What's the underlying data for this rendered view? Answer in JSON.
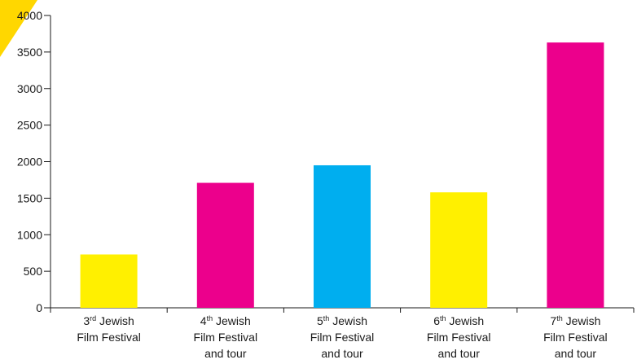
{
  "chart_data": {
    "type": "bar",
    "categories": [
      {
        "ordinal": "3",
        "suffix": "rd",
        "line1_rest": " Jewish",
        "line2": "Film Festival",
        "line3": ""
      },
      {
        "ordinal": "4",
        "suffix": "th",
        "line1_rest": " Jewish",
        "line2": "Film Festival",
        "line3": "and tour"
      },
      {
        "ordinal": "5",
        "suffix": "th",
        "line1_rest": " Jewish",
        "line2": "Film Festival",
        "line3": "and tour"
      },
      {
        "ordinal": "6",
        "suffix": "th",
        "line1_rest": " Jewish",
        "line2": "Film Festival",
        "line3": "and tour"
      },
      {
        "ordinal": "7",
        "suffix": "th",
        "line1_rest": " Jewish",
        "line2": "Film Festival",
        "line3": "and tour"
      }
    ],
    "values": [
      730,
      1710,
      1950,
      1580,
      3630
    ],
    "bar_colors": [
      "#FFF000",
      "#EC008C",
      "#00AEEF",
      "#FFF000",
      "#EC008C"
    ],
    "ylim": [
      0,
      4000
    ],
    "yticks": [
      0,
      500,
      1000,
      1500,
      2000,
      2500,
      3000,
      3500,
      4000
    ],
    "title": "",
    "xlabel": "",
    "ylabel": "",
    "grid": false,
    "corner_accent_color": "#FFD700"
  }
}
